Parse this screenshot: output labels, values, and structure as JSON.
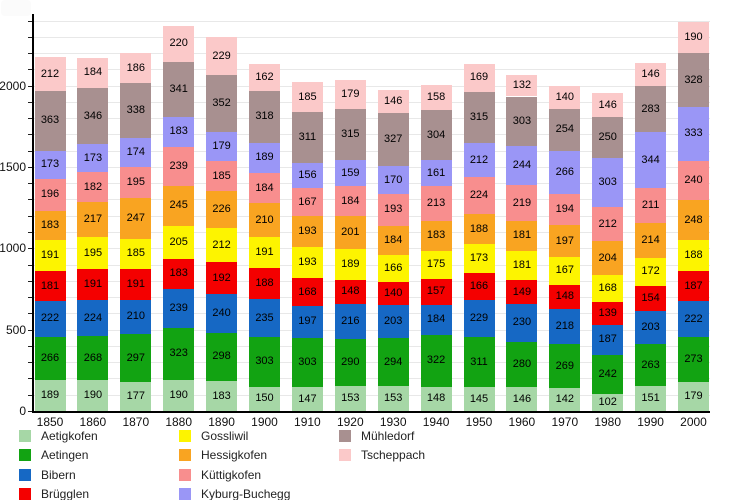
{
  "chart_data": {
    "type": "bar",
    "stacked": true,
    "title": "",
    "xlabel": "",
    "ylabel": "",
    "categories": [
      "1850",
      "1860",
      "1870",
      "1880",
      "1890",
      "1900",
      "1910",
      "1920",
      "1930",
      "1940",
      "1950",
      "1960",
      "1970",
      "1980",
      "1990",
      "2000"
    ],
    "series": [
      {
        "name": "Aetigkofen",
        "color": "#a6d7a6",
        "values": [
          189,
          190,
          177,
          190,
          183,
          150,
          147,
          153,
          153,
          148,
          145,
          146,
          142,
          102,
          151,
          179
        ]
      },
      {
        "name": "Aetingen",
        "color": "#12a312",
        "values": [
          266,
          268,
          297,
          323,
          298,
          303,
          303,
          290,
          294,
          322,
          311,
          280,
          269,
          242,
          263,
          273
        ]
      },
      {
        "name": "Bibern",
        "color": "#1668c4",
        "values": [
          222,
          224,
          210,
          239,
          240,
          235,
          197,
          216,
          203,
          184,
          229,
          230,
          218,
          187,
          203,
          222
        ]
      },
      {
        "name": "Brügglen",
        "color": "#f40000",
        "values": [
          181,
          191,
          191,
          183,
          192,
          188,
          168,
          148,
          140,
          157,
          166,
          149,
          148,
          139,
          154,
          187
        ]
      },
      {
        "name": "Gossliwil",
        "color": "#fdf400",
        "values": [
          191,
          195,
          185,
          205,
          212,
          191,
          193,
          189,
          166,
          175,
          173,
          181,
          167,
          168,
          172,
          188
        ]
      },
      {
        "name": "Hessigkofen",
        "color": "#f9a421",
        "values": [
          183,
          217,
          247,
          245,
          226,
          210,
          193,
          201,
          184,
          183,
          188,
          181,
          197,
          204,
          214,
          248
        ]
      },
      {
        "name": "Küttigkofen",
        "color": "#f88e8e",
        "values": [
          196,
          182,
          195,
          239,
          185,
          184,
          167,
          184,
          193,
          213,
          224,
          219,
          194,
          212,
          211,
          240
        ]
      },
      {
        "name": "Kyburg-Buchegg",
        "color": "#9a96f6",
        "values": [
          173,
          173,
          174,
          183,
          179,
          189,
          156,
          159,
          170,
          161,
          212,
          244,
          266,
          303,
          344,
          333
        ]
      },
      {
        "name": "Mühledorf",
        "color": "#a89090",
        "values": [
          363,
          346,
          338,
          341,
          352,
          318,
          311,
          315,
          327,
          304,
          315,
          303,
          254,
          250,
          283,
          328
        ]
      },
      {
        "name": "Tscheppach",
        "color": "#fbc9c9",
        "values": [
          212,
          184,
          186,
          220,
          229,
          162,
          185,
          179,
          146,
          158,
          169,
          132,
          140,
          146,
          146,
          190
        ]
      }
    ],
    "y_ticks": [
      0,
      500,
      1000,
      1500,
      2000
    ],
    "y_minor_tick_step": 100,
    "ylim": [
      0,
      2450
    ],
    "grid": "horizontal-every-100",
    "legend_position": "bottom",
    "legend_columns": [
      [
        "Aetigkofen",
        "Aetingen",
        "Bibern",
        "Brügglen"
      ],
      [
        "Gossliwil",
        "Hessigkofen",
        "Küttigkofen",
        "Kyburg-Buchegg"
      ],
      [
        "Mühledorf",
        "Tscheppach"
      ]
    ]
  },
  "colors": {
    "background": "#ffffff",
    "axis": "#000000",
    "grid": "#e8e8e8",
    "value_label": "#000000"
  }
}
